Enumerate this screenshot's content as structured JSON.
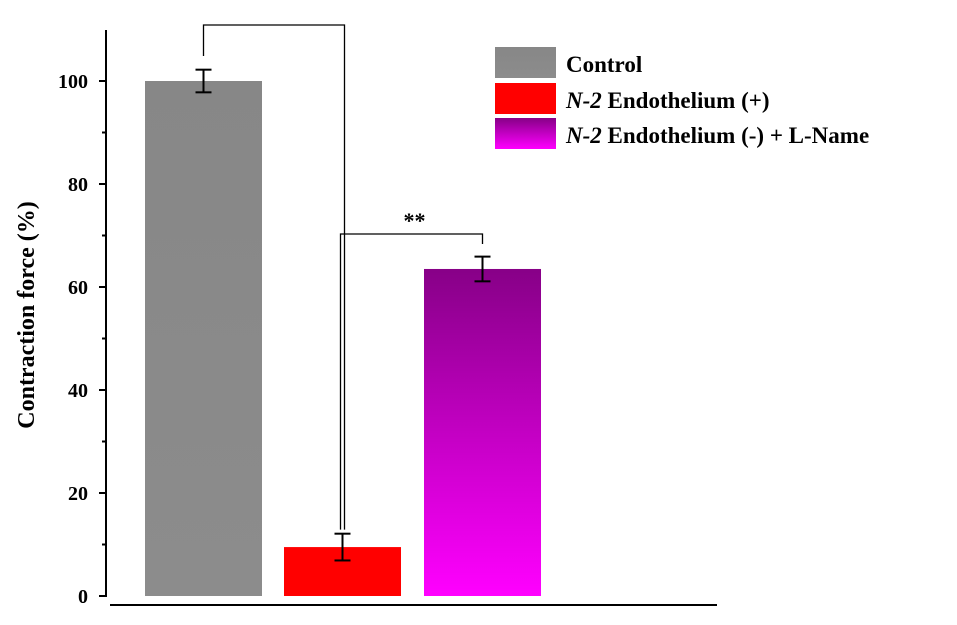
{
  "chart_data": {
    "type": "bar",
    "title": "",
    "xlabel": "",
    "ylabel": "Contraction force (%)",
    "ylim": [
      0,
      110
    ],
    "yticks": [
      0,
      20,
      40,
      60,
      80,
      100
    ],
    "ytick_labels": [
      "0",
      "20",
      "40",
      "60",
      "80",
      "100"
    ],
    "legend_position": "top-right",
    "categories": [
      "Control",
      "N-2 Endothelium (+)",
      "N-2 Endothelium (-) + L-Name"
    ],
    "values": [
      100,
      9.5,
      63.5
    ],
    "errors": [
      2.2,
      2.6,
      2.4
    ],
    "series": [
      {
        "name": "Control",
        "name_italic": "",
        "name_rest": "Control",
        "value": 100,
        "error": 2.2,
        "color_top": "#878787",
        "color_bottom": "#8c8c8c"
      },
      {
        "name": "N-2 Endothelium (+)",
        "name_italic": "N-2",
        "name_rest": " Endothelium (+)",
        "value": 9.5,
        "error": 2.6,
        "color_top": "#ff0000",
        "color_bottom": "#ff0000"
      },
      {
        "name": "N-2 Endothelium (-) + L-Name",
        "name_italic": "N-2",
        "name_rest": " Endothelium (-) + L-Name",
        "value": 63.5,
        "error": 2.4,
        "color_top": "#870087",
        "color_bottom": "#ff00ff"
      }
    ],
    "annotations": [
      {
        "type": "bracket",
        "from": "Control",
        "to": "N-2 Endothelium (+)",
        "label": ""
      },
      {
        "type": "bracket",
        "from": "N-2 Endothelium (+)",
        "to": "N-2 Endothelium (-) + L-Name",
        "label": "**"
      }
    ]
  }
}
